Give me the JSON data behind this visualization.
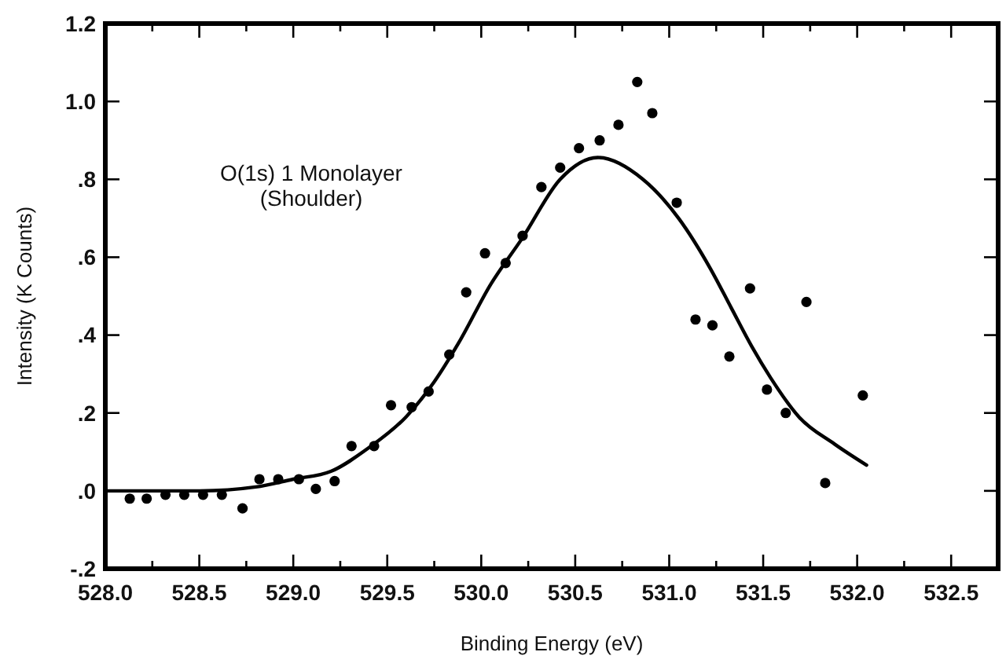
{
  "chart_data": {
    "type": "scatter",
    "xlabel": "Binding Energy (eV)",
    "ylabel": "Intensity (K Counts)",
    "annotations": [
      "O(1s) 1 Monolayer\n(Shoulder)"
    ],
    "xlim": [
      528.0,
      532.75
    ],
    "ylim": [
      -0.2,
      1.2
    ],
    "xticks": [
      {
        "value": 528.0,
        "label": "528.0"
      },
      {
        "value": 528.25,
        "label": null
      },
      {
        "value": 528.5,
        "label": "528.5"
      },
      {
        "value": 528.75,
        "label": null
      },
      {
        "value": 529.0,
        "label": "529.0"
      },
      {
        "value": 529.25,
        "label": null
      },
      {
        "value": 529.5,
        "label": "529.5"
      },
      {
        "value": 529.75,
        "label": null
      },
      {
        "value": 530.0,
        "label": "530.0"
      },
      {
        "value": 530.25,
        "label": null
      },
      {
        "value": 530.5,
        "label": "530.5"
      },
      {
        "value": 530.75,
        "label": null
      },
      {
        "value": 531.0,
        "label": "531.0"
      },
      {
        "value": 531.25,
        "label": null
      },
      {
        "value": 531.5,
        "label": "531.5"
      },
      {
        "value": 531.75,
        "label": null
      },
      {
        "value": 532.0,
        "label": "532.0"
      },
      {
        "value": 532.25,
        "label": null
      },
      {
        "value": 532.5,
        "label": "532.5"
      }
    ],
    "yticks": [
      {
        "value": -0.2,
        "label": "-.2"
      },
      {
        "value": 0,
        "label": ".0"
      },
      {
        "value": 0.2,
        "label": ".2"
      },
      {
        "value": 0.4,
        "label": ".4"
      },
      {
        "value": 0.6,
        "label": ".6"
      },
      {
        "value": 0.8,
        "label": ".8"
      },
      {
        "value": 1.0,
        "label": "1.0"
      },
      {
        "value": 1.2,
        "label": "1.2"
      }
    ],
    "grid": false,
    "series": [
      {
        "marker": "circle",
        "color": "#000000",
        "x": [
          528.13,
          528.22,
          528.32,
          528.42,
          528.52,
          528.62,
          528.73,
          528.82,
          528.92,
          529.03,
          529.12,
          529.22,
          529.31,
          529.43,
          529.52,
          529.63,
          529.72,
          529.83,
          529.92,
          530.02,
          530.13,
          530.22,
          530.32,
          530.42,
          530.52,
          530.63,
          530.73,
          530.83,
          530.91,
          531.04,
          531.14,
          531.23,
          531.32,
          531.43,
          531.52,
          531.62,
          531.73,
          531.83,
          532.03
        ],
        "values": [
          -0.02,
          -0.02,
          -0.01,
          -0.01,
          -0.01,
          -0.01,
          -0.045,
          0.03,
          0.03,
          0.03,
          0.005,
          0.025,
          0.115,
          0.115,
          0.22,
          0.215,
          0.255,
          0.35,
          0.51,
          0.61,
          0.585,
          0.655,
          0.78,
          0.83,
          0.88,
          0.9,
          0.94,
          1.05,
          0.97,
          0.74,
          0.44,
          0.425,
          0.345,
          0.52,
          0.26,
          0.2,
          0.485,
          0.02,
          0.245
        ]
      },
      {
        "type": "line",
        "marker": "none",
        "line_style": "solid",
        "color": "#000000",
        "x": [
          528.0,
          528.5,
          528.8,
          529.0,
          529.2,
          529.4,
          529.6,
          529.75,
          529.88,
          530.05,
          530.22,
          530.42,
          530.62,
          530.86,
          531.05,
          531.22,
          531.33,
          531.44,
          531.54,
          531.69,
          531.88,
          532.05
        ],
        "values": [
          0.0,
          0.0,
          0.01,
          0.03,
          0.05,
          0.11,
          0.19,
          0.28,
          0.38,
          0.53,
          0.65,
          0.8,
          0.856,
          0.8,
          0.7,
          0.57,
          0.47,
          0.37,
          0.29,
          0.19,
          0.12,
          0.066
        ]
      }
    ]
  }
}
